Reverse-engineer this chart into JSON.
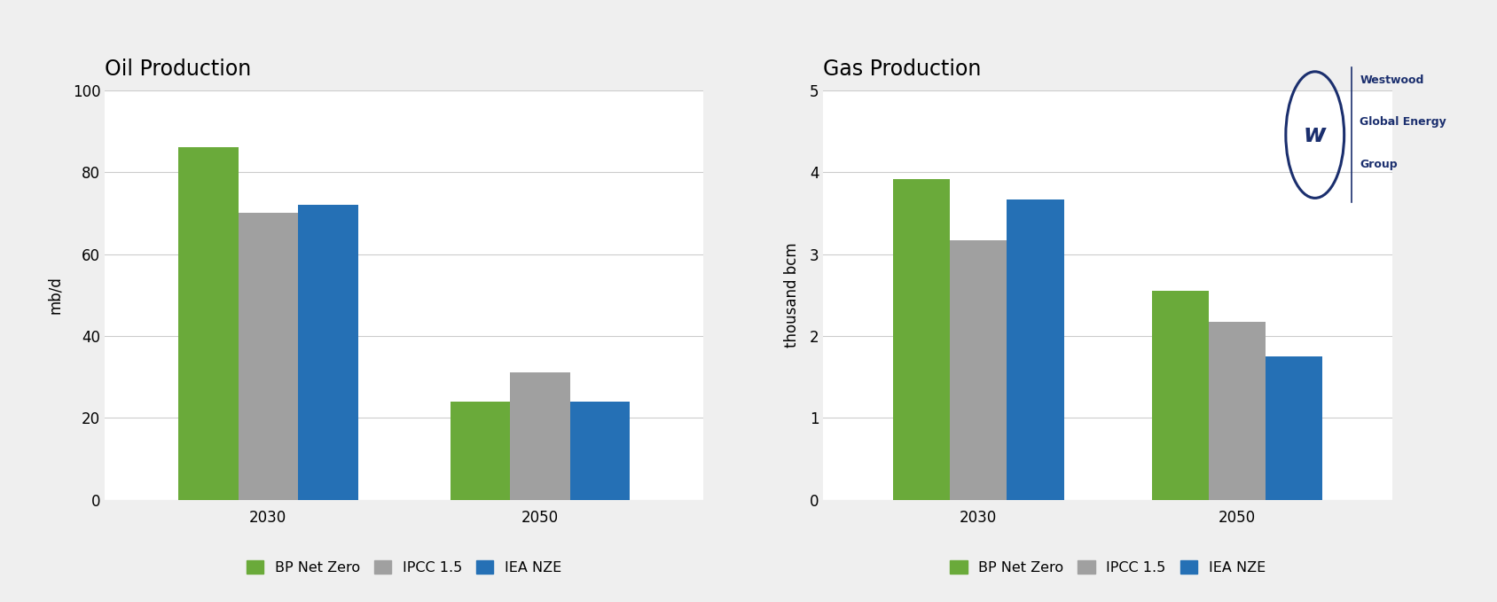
{
  "oil_title": "Oil Production",
  "gas_title": "Gas Production",
  "oil_ylabel": "mb/d",
  "gas_ylabel": "thousand bcm",
  "categories": [
    "2030",
    "2050"
  ],
  "oil_values": {
    "BP Net Zero": [
      86,
      24
    ],
    "IPCC 1.5": [
      70,
      31
    ],
    "IEA NZE": [
      72,
      24
    ]
  },
  "gas_values": {
    "BP Net Zero": [
      3.92,
      2.55
    ],
    "IPCC 1.5": [
      3.17,
      2.17
    ],
    "IEA NZE": [
      3.67,
      1.75
    ]
  },
  "oil_ylim": [
    0,
    100
  ],
  "oil_yticks": [
    0,
    20,
    40,
    60,
    80,
    100
  ],
  "gas_ylim": [
    0,
    5
  ],
  "gas_yticks": [
    0,
    1,
    2,
    3,
    4,
    5
  ],
  "colors": {
    "BP Net Zero": "#6aaa3a",
    "IPCC 1.5": "#a0a0a0",
    "IEA NZE": "#2570b5"
  },
  "legend_labels": [
    "BP Net Zero",
    "IPCC 1.5",
    "IEA NZE"
  ],
  "background_color": "#efefef",
  "plot_background": "#ffffff",
  "grid_color": "#cccccc",
  "bar_width": 0.22,
  "westwood_color": "#1b2f6e",
  "title_fontsize": 17,
  "label_fontsize": 12,
  "tick_fontsize": 12,
  "legend_fontsize": 11.5
}
